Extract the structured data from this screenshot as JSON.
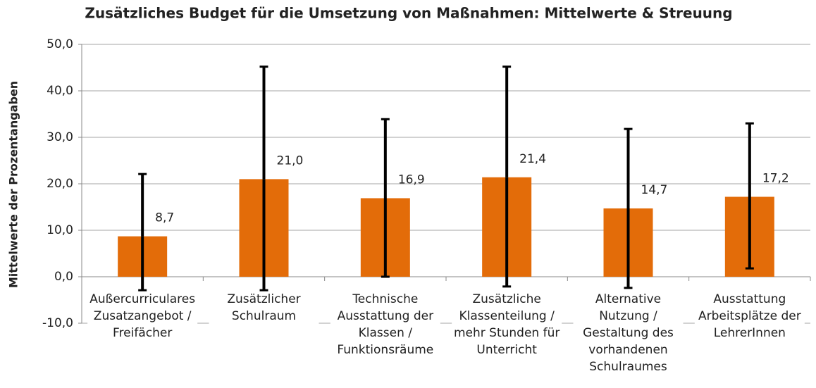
{
  "chart_data": {
    "type": "bar",
    "title": "Zusätzliches Budget für die Umsetzung von Maßnahmen: Mittelwerte & Streuung",
    "y_label": "Mittelwerte der Prozentangaben",
    "categories": [
      [
        "Außercurriculares",
        "Zusatzangebot /",
        "Freifächer"
      ],
      [
        "Zusätzlicher",
        "Schulraum"
      ],
      [
        "Technische",
        "Ausstattung der",
        "Klassen /",
        "Funktionsräume"
      ],
      [
        "Zusätzliche",
        "Klassenteilung /",
        "mehr Stunden für",
        "Unterricht"
      ],
      [
        "Alternative",
        "Nutzung /",
        "Gestaltung des",
        "vorhandenen",
        "Schulraumes"
      ],
      [
        "Ausstattung",
        "Arbeitsplätze der",
        "LehrerInnen"
      ]
    ],
    "values": [
      8.7,
      21.0,
      16.9,
      21.4,
      14.7,
      17.2
    ],
    "value_labels": [
      "8,7",
      "21,0",
      "16,9",
      "21,4",
      "14,7",
      "17,2"
    ],
    "error_plus": [
      13.4,
      24.2,
      17.0,
      23.8,
      17.1,
      15.8
    ],
    "error_minus": [
      11.6,
      23.9,
      16.9,
      23.5,
      17.1,
      15.4
    ],
    "color": "#e36c09",
    "ylim": [
      -10,
      50
    ],
    "yticks": [
      {
        "value": -10,
        "label": "-10,0"
      },
      {
        "value": 0,
        "label": "0,0"
      },
      {
        "value": 10,
        "label": "10,0"
      },
      {
        "value": 20,
        "label": "20,0"
      },
      {
        "value": 30,
        "label": "30,0"
      },
      {
        "value": 40,
        "label": "40,0"
      },
      {
        "value": 50,
        "label": "50,0"
      }
    ],
    "grid": true
  }
}
